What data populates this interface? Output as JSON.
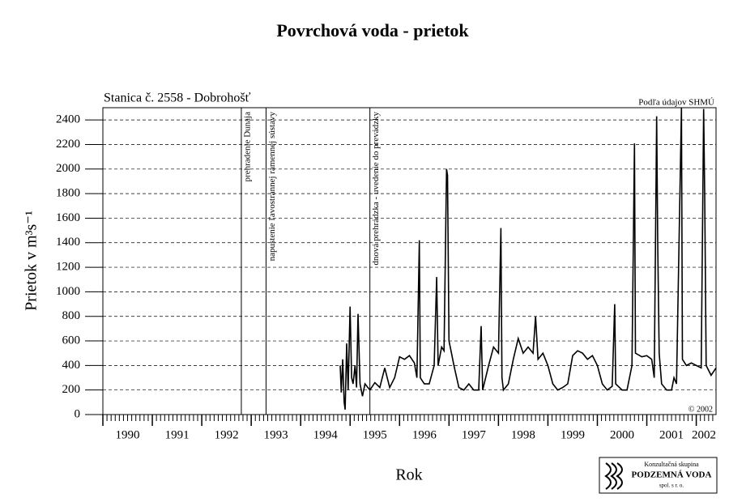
{
  "chart_data": {
    "type": "line",
    "title": "Povrchová voda - prietok",
    "subtitle": "Stanica č. 2558 - Dobrohošť",
    "source": "Podľa údajov SHMÚ",
    "copyright": "© 2002",
    "xlabel": "Rok",
    "ylabel": "Prietok v m³s⁻¹",
    "xlim": [
      1990,
      2002.4
    ],
    "xticks": [
      1990,
      1991,
      1992,
      1993,
      1994,
      1995,
      1996,
      1997,
      1998,
      1999,
      2000,
      2001,
      2002
    ],
    "ylim": [
      0,
      2500
    ],
    "yticks": [
      0,
      200,
      400,
      600,
      800,
      1000,
      1200,
      1400,
      1600,
      1800,
      2000,
      2200,
      2400
    ],
    "grid": true,
    "color": "#000000",
    "events": [
      {
        "x": 1992.8,
        "label": "prehradenie Dunaja"
      },
      {
        "x": 1993.3,
        "label": "napustenie ľavostrannej ramennej sústavy"
      },
      {
        "x": 1995.4,
        "label": "dnová prehrádzka - uvedenie do prevádzky"
      }
    ],
    "x": [
      1994.8,
      1994.82,
      1994.85,
      1994.88,
      1994.9,
      1994.93,
      1994.96,
      1995.0,
      1995.03,
      1995.06,
      1995.1,
      1995.13,
      1995.16,
      1995.2,
      1995.25,
      1995.3,
      1995.4,
      1995.5,
      1995.6,
      1995.7,
      1995.8,
      1995.9,
      1996.0,
      1996.1,
      1996.2,
      1996.3,
      1996.35,
      1996.4,
      1996.42,
      1996.5,
      1996.6,
      1996.7,
      1996.75,
      1996.78,
      1996.85,
      1996.9,
      1996.95,
      1996.97,
      1997.0,
      1997.05,
      1997.1,
      1997.2,
      1997.3,
      1997.4,
      1997.5,
      1997.6,
      1997.65,
      1997.68,
      1997.8,
      1997.9,
      1998.0,
      1998.05,
      1998.07,
      1998.1,
      1998.2,
      1998.3,
      1998.4,
      1998.5,
      1998.6,
      1998.7,
      1998.75,
      1998.8,
      1998.9,
      1999.0,
      1999.1,
      1999.2,
      1999.3,
      1999.4,
      1999.5,
      1999.6,
      1999.7,
      1999.8,
      1999.9,
      2000.0,
      2000.1,
      2000.2,
      2000.3,
      2000.35,
      2000.37,
      2000.5,
      2000.6,
      2000.7,
      2000.75,
      2000.77,
      2000.9,
      2001.0,
      2001.1,
      2001.15,
      2001.2,
      2001.22,
      2001.25,
      2001.3,
      2001.4,
      2001.5,
      2001.55,
      2001.6,
      2001.7,
      2001.72,
      2001.8,
      2001.9,
      2002.0,
      2002.1,
      2002.15,
      2002.17,
      2002.2,
      2002.3,
      2002.4
    ],
    "values": [
      400,
      180,
      450,
      100,
      40,
      580,
      200,
      880,
      300,
      250,
      400,
      220,
      820,
      250,
      150,
      250,
      200,
      260,
      220,
      380,
      220,
      300,
      470,
      450,
      480,
      420,
      300,
      1420,
      300,
      250,
      250,
      400,
      1120,
      400,
      550,
      520,
      2000,
      1950,
      600,
      500,
      400,
      220,
      200,
      250,
      200,
      200,
      720,
      200,
      400,
      550,
      500,
      1520,
      300,
      200,
      250,
      450,
      620,
      500,
      550,
      500,
      800,
      450,
      500,
      400,
      250,
      200,
      220,
      250,
      480,
      520,
      500,
      450,
      480,
      400,
      250,
      200,
      230,
      900,
      250,
      200,
      200,
      400,
      2210,
      500,
      470,
      480,
      450,
      300,
      2430,
      1400,
      500,
      250,
      200,
      200,
      300,
      250,
      2500,
      450,
      400,
      420,
      400,
      380,
      2490,
      1800,
      400,
      320,
      380
    ],
    "logo": {
      "line1": "Konzultačná skupina",
      "line2": "PODZEMNÁ VODA",
      "line3": "spol. s r. o."
    }
  }
}
